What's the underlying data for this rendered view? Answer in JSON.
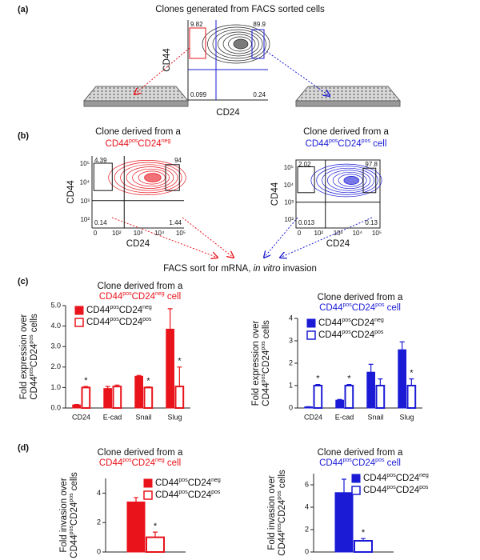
{
  "panel_labels": [
    "(a)",
    "(b)",
    "(c)",
    "(d)"
  ],
  "panel_a": {
    "title": "Clones generated from FACS sorted cells",
    "x_label": "CD24",
    "y_label": "CD44",
    "quadrant_values": [
      "9.82",
      "89.9",
      "0.099",
      "0.24"
    ]
  },
  "panel_b": {
    "plots": [
      {
        "title_line1": "Clone derived from a",
        "title_line2": [
          "CD44",
          {
            "sup": "pos"
          },
          "CD24",
          {
            "sup": "neg"
          }
        ],
        "color": "#e8131b",
        "x_label": "CD24",
        "y_label": "CD44",
        "quadrant_values": [
          "4.39",
          "94",
          "0.14",
          "1.44"
        ],
        "x_ticks": [
          "0",
          "10²",
          "10³",
          "10⁴",
          "10⁵"
        ],
        "y_ticks": [
          "10²",
          "10³",
          "10⁴",
          "10⁵"
        ]
      },
      {
        "title_line1": "Clone derived from a",
        "title_line2": [
          "CD44",
          {
            "sup": "pos"
          },
          "CD24",
          {
            "sup": "pos"
          },
          " cell"
        ],
        "color": "#1b1bd6",
        "x_label": "CD24",
        "y_label": "CD44",
        "quadrant_values": [
          "2.02",
          "97.8",
          "0.013",
          "0.13"
        ],
        "x_ticks": [
          "0",
          "10²",
          "10³",
          "10⁴",
          "10⁵"
        ],
        "y_ticks": [
          "10²",
          "10³",
          "10⁴",
          "10⁵"
        ]
      }
    ],
    "caption": [
      "FACS sort for mRNA, ",
      {
        "i": "in vitro"
      },
      " invasion"
    ]
  },
  "chart_data": [
    {
      "type": "bar",
      "title": "Clone derived from a",
      "subtitle": [
        "CD44",
        {
          "sup": "pos"
        },
        "CD24",
        {
          "sup": "neg"
        },
        " cell"
      ],
      "subtitle_color": "#e8131b",
      "y_label": "Fold expression over",
      "y_label_2": [
        "CD44",
        {
          "sup": "pos"
        },
        "CD24",
        {
          "sup": "pos"
        },
        " cells"
      ],
      "categories": [
        "CD24",
        "E-cad",
        "Snail",
        "Slug"
      ],
      "legend": "top-left",
      "ylim": [
        0,
        5
      ],
      "yticks": [
        {
          "value": 0,
          "label": "0.0"
        },
        {
          "value": 1,
          "label": "1.0"
        },
        {
          "value": 2,
          "label": "2.0"
        },
        {
          "value": 3,
          "label": "3.0"
        },
        {
          "value": 4,
          "label": "4.0"
        },
        {
          "value": 5,
          "label": "5.0"
        }
      ],
      "series": [
        {
          "name": [
            "CD44",
            {
              "sup": "pos"
            },
            "CD24",
            {
              "sup": "neg"
            }
          ],
          "color": "#e8131b",
          "fill": true,
          "values": [
            0.15,
            0.95,
            1.55,
            3.85
          ],
          "errors": [
            0.02,
            0.1,
            0.04,
            1.0
          ],
          "marks": [
            null,
            null,
            null,
            null
          ]
        },
        {
          "name": [
            "CD44",
            {
              "sup": "pos"
            },
            "CD24",
            {
              "sup": "pos"
            }
          ],
          "color": "#e8131b",
          "fill": false,
          "values": [
            1.0,
            1.05,
            1.0,
            1.05
          ],
          "errors": [
            0.05,
            0.07,
            0.03,
            0.95
          ],
          "marks": [
            "*",
            null,
            "*",
            "*"
          ]
        }
      ]
    },
    {
      "type": "bar",
      "title": "Clone derived from a",
      "subtitle": [
        "CD44",
        {
          "sup": "pos"
        },
        "CD24",
        {
          "sup": "pos"
        },
        " cell"
      ],
      "subtitle_color": "#1b1bd6",
      "y_label": "Fold expression over",
      "y_label_2": [
        "CD44",
        {
          "sup": "pos"
        },
        "CD24",
        {
          "sup": "pos"
        },
        " cells"
      ],
      "categories": [
        "CD24",
        "E-cad",
        "Snail",
        "Slug"
      ],
      "legend": "top-left",
      "ylim": [
        0,
        4
      ],
      "yticks": [
        0,
        1,
        2,
        3,
        4
      ],
      "series": [
        {
          "name": [
            "CD44",
            {
              "sup": "pos"
            },
            "CD24",
            {
              "sup": "neg"
            }
          ],
          "color": "#1b1bd6",
          "fill": true,
          "values": [
            0.05,
            0.35,
            1.6,
            2.6
          ],
          "errors": [
            0.01,
            0.03,
            0.35,
            0.35
          ],
          "marks": [
            null,
            null,
            null,
            null
          ]
        },
        {
          "name": [
            "CD44",
            {
              "sup": "pos"
            },
            "CD24",
            {
              "sup": "pos"
            }
          ],
          "color": "#1b1bd6",
          "fill": false,
          "values": [
            1.0,
            1.0,
            1.0,
            1.0
          ],
          "errors": [
            0.05,
            0.05,
            0.3,
            0.3
          ],
          "marks": [
            "*",
            "*",
            null,
            "*"
          ]
        }
      ]
    },
    {
      "type": "bar",
      "title": "Clone derived from a",
      "subtitle": [
        "CD44",
        {
          "sup": "pos"
        },
        "CD24",
        {
          "sup": "neg"
        },
        " cell"
      ],
      "subtitle_color": "#e8131b",
      "y_label": "Fold invasion over",
      "y_label_2": [
        "CD44",
        {
          "sup": "pos"
        },
        "CD24",
        {
          "sup": "pos"
        },
        " cells"
      ],
      "categories": [
        null
      ],
      "legend": "top-right",
      "ylim": [
        0,
        5
      ],
      "yticks": [
        0,
        2,
        4
      ],
      "series": [
        {
          "name": [
            "CD44",
            {
              "sup": "pos"
            },
            "CD24",
            {
              "sup": "neg"
            }
          ],
          "color": "#e8131b",
          "fill": true,
          "values": [
            3.4
          ],
          "errors": [
            0.3
          ],
          "marks": [
            null
          ]
        },
        {
          "name": [
            "CD44",
            {
              "sup": "pos"
            },
            "CD24",
            {
              "sup": "pos"
            }
          ],
          "color": "#e8131b",
          "fill": false,
          "values": [
            1.0
          ],
          "errors": [
            0.35
          ],
          "marks": [
            "*"
          ]
        }
      ]
    },
    {
      "type": "bar",
      "title": "Clone derived from a",
      "subtitle": [
        "CD44",
        {
          "sup": "pos"
        },
        "CD24",
        {
          "sup": "pos"
        },
        " cell"
      ],
      "subtitle_color": "#1b1bd6",
      "y_label": "Fold invasion over",
      "y_label_2": [
        "CD44",
        {
          "sup": "pos"
        },
        "CD24",
        {
          "sup": "pos"
        },
        " cells"
      ],
      "categories": [
        null
      ],
      "legend": "top-right",
      "ylim": [
        0,
        7
      ],
      "yticks": [
        0,
        2,
        4,
        6
      ],
      "series": [
        {
          "name": [
            "CD44",
            {
              "sup": "pos"
            },
            "CD24",
            {
              "sup": "neg"
            }
          ],
          "color": "#1b1bd6",
          "fill": true,
          "values": [
            5.3
          ],
          "errors": [
            1.2
          ],
          "marks": [
            null
          ]
        },
        {
          "name": [
            "CD44",
            {
              "sup": "pos"
            },
            "CD24",
            {
              "sup": "pos"
            }
          ],
          "color": "#1b1bd6",
          "fill": false,
          "values": [
            1.0
          ],
          "errors": [
            0.2
          ],
          "marks": [
            "*"
          ]
        }
      ]
    }
  ]
}
